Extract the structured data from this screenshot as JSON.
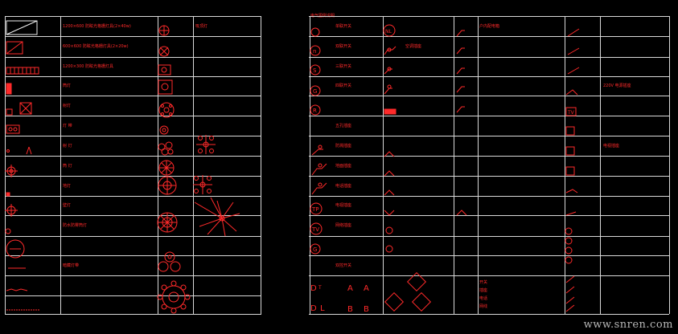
{
  "left_panel": {
    "rows": [
      {
        "label_a": "1200×600 防眩光格栅灯具(2×40w)",
        "label_b": "吸顶灯"
      },
      {
        "label_a": "600×600 防眩光格栅灯具(2×20w)",
        "label_b": ""
      },
      {
        "label_a": "1200×300 防眩光格栅灯具",
        "label_b": ""
      },
      {
        "label_a": "筒灯",
        "label_b": ""
      },
      {
        "label_a": "射灯",
        "label_b": ""
      },
      {
        "label_a": "灯 带",
        "label_b": ""
      },
      {
        "label_a": "射 灯",
        "label_b": ""
      },
      {
        "label_a": "筒 灯",
        "label_b": ""
      },
      {
        "label_a": "地灯",
        "label_b": ""
      },
      {
        "label_a": "壁灯",
        "label_b": ""
      },
      {
        "label_a": "防水防雾筒灯",
        "label_b": ""
      },
      {
        "label_a": "",
        "label_b": ""
      },
      {
        "label_a": "暗藏灯带",
        "label_b": ""
      }
    ]
  },
  "right_panel": {
    "title": "电气图例说明",
    "col1": [
      "单联开关",
      "双联开关",
      "三联开关",
      "四联开关",
      "",
      "五孔插座",
      "防溅插座",
      "地面插座",
      "电话插座",
      "电视插座",
      "网络插座",
      "",
      "双控开关"
    ],
    "col2": [
      "",
      "空调插座",
      "",
      "",
      "",
      "",
      "",
      "",
      "",
      "",
      "",
      "",
      ""
    ],
    "col3": [
      "户内配电箱",
      "",
      "",
      "",
      "",
      "",
      "",
      "",
      "",
      "",
      "",
      "",
      ""
    ],
    "col4": [
      "",
      "",
      "",
      "",
      "",
      "",
      "",
      "",
      "",
      "",
      "",
      "",
      ""
    ],
    "col5": [
      "",
      "",
      "",
      "220V 电源插座",
      "",
      "",
      "电视插座",
      "",
      "",
      "",
      "",
      "",
      ""
    ],
    "bottom_legend": [
      "开关",
      "插座",
      "电话",
      "网线"
    ]
  },
  "watermark": "www.snren.com"
}
